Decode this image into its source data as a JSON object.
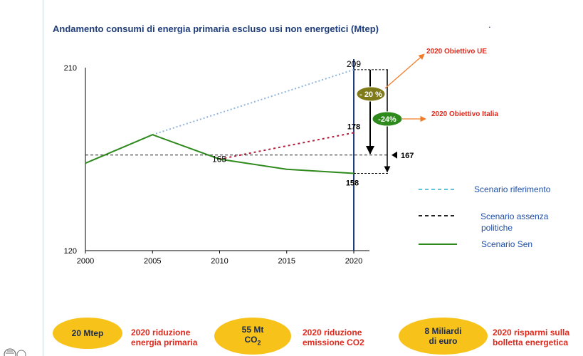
{
  "title": "Andamento consumi di energia primaria escluso usi non energetici (Mtep)",
  "title_dot": ".",
  "chart_data": {
    "type": "line",
    "title": "Andamento consumi di energia primaria escluso usi non energetici (Mtep)",
    "xlabel": "",
    "ylabel": "",
    "xlim": [
      2000,
      2022
    ],
    "ylim": [
      120,
      210
    ],
    "x_ticks": [
      "2000",
      "2005",
      "2010",
      "2015",
      "2020"
    ],
    "y_ticks": [
      "120",
      "210"
    ],
    "series": [
      {
        "name": "Scenario riferimento",
        "color": "#8fb4dc",
        "style": "dotted",
        "x": [
          2005,
          2020
        ],
        "y": [
          177,
          209
        ]
      },
      {
        "name": "Scenario assenza politiche",
        "color": "#b01e3c",
        "style": "dotted",
        "x": [
          2010,
          2020
        ],
        "y": [
          165,
          178
        ]
      },
      {
        "name": "Scenario Sen",
        "color": "#2f8a1d",
        "style": "solid",
        "x": [
          2000,
          2005,
          2010,
          2015,
          2020
        ],
        "y": [
          163,
          177,
          165,
          160,
          158
        ]
      }
    ],
    "reference_line": {
      "style": "dashed",
      "color": "#222222",
      "y": 167
    },
    "data_labels": {
      "v209": "209",
      "v178": "178",
      "v165": "165",
      "v167": "167",
      "v158": "158"
    },
    "badges": {
      "ue": "- 20 %",
      "italia": "-24%"
    },
    "badge_colors": {
      "ue": "#7f7a1a",
      "italia": "#2f8a1d"
    },
    "annotations": {
      "ue": "2020 Obiettivo UE",
      "italia": "2020 Obiettivo Italia"
    },
    "legend": {
      "placement": "right",
      "items": [
        {
          "label": "Scenario riferimento",
          "color": "#5fc4d8",
          "style": "dashed"
        },
        {
          "label": "Scenario assenza politiche",
          "color": "#222222",
          "style": "dashed"
        },
        {
          "label": "Scenario Sen",
          "color": "#2f8a1d",
          "style": "solid"
        }
      ]
    }
  },
  "summary": [
    {
      "value_lines": [
        "20 Mtep"
      ],
      "note_lines": [
        "2020 riduzione",
        "energia primaria"
      ]
    },
    {
      "value_lines": [
        "55 Mt",
        "CO2"
      ],
      "note_lines": [
        "2020 riduzione",
        "emissione CO2"
      ]
    },
    {
      "value_lines": [
        "8  Miliardi",
        "di  euro"
      ],
      "note_lines": [
        "2020 risparmi sulla",
        "bolletta energetica"
      ]
    }
  ],
  "colors": {
    "oval": "#f7c31a",
    "note": "#e0291c",
    "legend_text": "#1f4fa8",
    "title": "#1f3d7a",
    "axis": "#000000"
  }
}
